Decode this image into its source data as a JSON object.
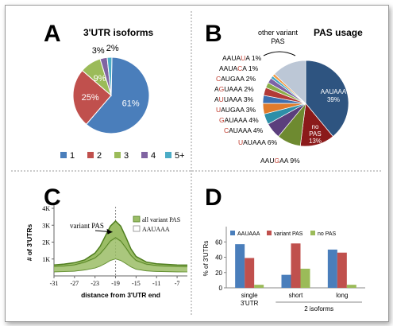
{
  "figure": {
    "panel_letters": [
      "A",
      "B",
      "C",
      "D"
    ]
  },
  "colors": {
    "blue": "#4a7ebb",
    "red": "#c0504d",
    "green": "#9bbb59",
    "purple": "#8064a2",
    "cyan": "#4bacc6",
    "pas_u": "#c0392b",
    "navy": "#2e5480",
    "darkred": "#8b1a1a",
    "olive": "#6e8a30",
    "area_green": "#9bbd66",
    "line_green": "#4e7d1e"
  },
  "chart_data": [
    {
      "panel": "A",
      "type": "pie",
      "title": "3'UTR isoforms",
      "categories": [
        "1",
        "2",
        "3",
        "4",
        "5+"
      ],
      "values": [
        61,
        25,
        9,
        3,
        2
      ],
      "labels": [
        "61%",
        "25%",
        "9%",
        "3%",
        "2%"
      ],
      "colors": [
        "#4a7ebb",
        "#c0504d",
        "#9bbb59",
        "#8064a2",
        "#4bacc6"
      ],
      "legend": "bottom"
    },
    {
      "panel": "B",
      "type": "pie",
      "title": "PAS usage",
      "slices": [
        {
          "label": "AAUAAA",
          "value": 39,
          "text": "39%",
          "color": "#2e5480"
        },
        {
          "label": "no PAS",
          "value": 13,
          "text": "13%",
          "color": "#8b1a1a"
        },
        {
          "label": "AAUGAA",
          "value": 9,
          "text": "9%",
          "color": "#6e8a30"
        },
        {
          "label": "UAUAAA",
          "value": 6,
          "text": "6%",
          "color": "#5b3f7d"
        },
        {
          "label": "CAUAAA",
          "value": 4,
          "text": "4%",
          "color": "#2e8fa8"
        },
        {
          "label": "GAUAAA",
          "value": 4,
          "text": "4%",
          "color": "#e07b2c"
        },
        {
          "label": "UAUGAA",
          "value": 3,
          "text": "3%",
          "color": "#3c6fb0"
        },
        {
          "label": "AUUAAA",
          "value": 3,
          "text": "3%",
          "color": "#b23a37"
        },
        {
          "label": "AGUAAA",
          "value": 2,
          "text": "2%",
          "color": "#8bae4a"
        },
        {
          "label": "CAUGAA",
          "value": 2,
          "text": "2%",
          "color": "#7d63a6"
        },
        {
          "label": "AAUACA",
          "value": 1,
          "text": "1%",
          "color": "#3fa6c2"
        },
        {
          "label": "AAUAUA",
          "value": 1,
          "text": "1%",
          "color": "#f09a45"
        },
        {
          "label": "other variant PAS",
          "value": 13,
          "text": "",
          "color": "#bcc7d6"
        }
      ],
      "left_labels": [
        {
          "pre": "AAUA",
          "hi": "U",
          "post": "A",
          "pct": " 1%"
        },
        {
          "pre": "AAUA",
          "hi": "C",
          "post": "A",
          "pct": " 1%"
        },
        {
          "pre": "",
          "hi": "C",
          "post": "AUGAA",
          "pct": " 2%"
        },
        {
          "pre": "A",
          "hi": "G",
          "post": "UAAA",
          "pct": " 2%"
        },
        {
          "pre": "A",
          "hi": "U",
          "post": "UAAA",
          "pct": " 3%"
        },
        {
          "pre": "",
          "hi": "U",
          "post": "AUGAA",
          "pct": " 3%"
        },
        {
          "pre": "",
          "hi": "G",
          "post": "AUAAA",
          "pct": " 4%"
        },
        {
          "pre": "",
          "hi": "C",
          "post": "AUAAA",
          "pct": " 4%"
        },
        {
          "pre": "",
          "hi": "U",
          "post": "AUAAA",
          "pct": " 6%"
        },
        {
          "pre": "AAU",
          "hi": "G",
          "post": "AA",
          "pct": " 9%"
        }
      ],
      "other_label": [
        "other variant",
        "PAS"
      ],
      "inner_labels": [
        {
          "lines": [
            "AAUAAA",
            "39%"
          ]
        },
        {
          "lines": [
            "no",
            "PAS",
            "13%"
          ]
        }
      ]
    },
    {
      "panel": "C",
      "type": "area",
      "xlabel": "distance from 3'UTR end",
      "ylabel": "# of 3'UTRs",
      "xlim": [
        -31,
        -5
      ],
      "ylim": [
        0,
        4000
      ],
      "xticks": [
        "-31",
        "-27",
        "-23",
        "-19",
        "-15",
        "-11",
        "-7"
      ],
      "yticks": [
        "1K",
        "2K",
        "3K",
        "4K"
      ],
      "series": [
        {
          "name": "all variant PAS",
          "x": [
            -31,
            -29,
            -27,
            -25,
            -23,
            -22,
            -21,
            -20,
            -19,
            -18,
            -17,
            -16,
            -15,
            -13,
            -11,
            -9,
            -7,
            -5
          ],
          "y": [
            650,
            700,
            780,
            950,
            1350,
            1750,
            2350,
            2950,
            3250,
            2950,
            2300,
            1600,
            1150,
            820,
            720,
            680,
            650,
            640
          ]
        },
        {
          "name": "AAUAAA",
          "x": [
            -31,
            -29,
            -27,
            -25,
            -23,
            -22,
            -21,
            -20,
            -19,
            -18,
            -17,
            -16,
            -15,
            -13,
            -11,
            -9,
            -7,
            -5
          ],
          "y": [
            550,
            580,
            640,
            800,
            1050,
            1300,
            1650,
            2050,
            2250,
            2050,
            1650,
            1200,
            900,
            680,
            600,
            570,
            550,
            540
          ]
        }
      ],
      "annotation": "variant PAS",
      "legend": "top-right"
    },
    {
      "panel": "D",
      "type": "bar",
      "ylabel": "% of 3'UTRs",
      "ylim": [
        0,
        80
      ],
      "yticks": [
        "0",
        "20",
        "40",
        "60"
      ],
      "categories": [
        "single 3'UTR",
        "short",
        "long"
      ],
      "category_lines": [
        [
          "single",
          "3'UTR"
        ],
        [
          "short"
        ],
        [
          "long"
        ]
      ],
      "group_label": "2 isoforms",
      "series": [
        {
          "name": "AAUAAA",
          "values": [
            57,
            17,
            50
          ],
          "color": "#4a7ebb"
        },
        {
          "name": "variant PAS",
          "values": [
            39,
            58,
            46
          ],
          "color": "#c0504d"
        },
        {
          "name": "no PAS",
          "values": [
            4,
            25,
            4
          ],
          "color": "#9bbb59"
        }
      ],
      "legend": "top"
    }
  ]
}
